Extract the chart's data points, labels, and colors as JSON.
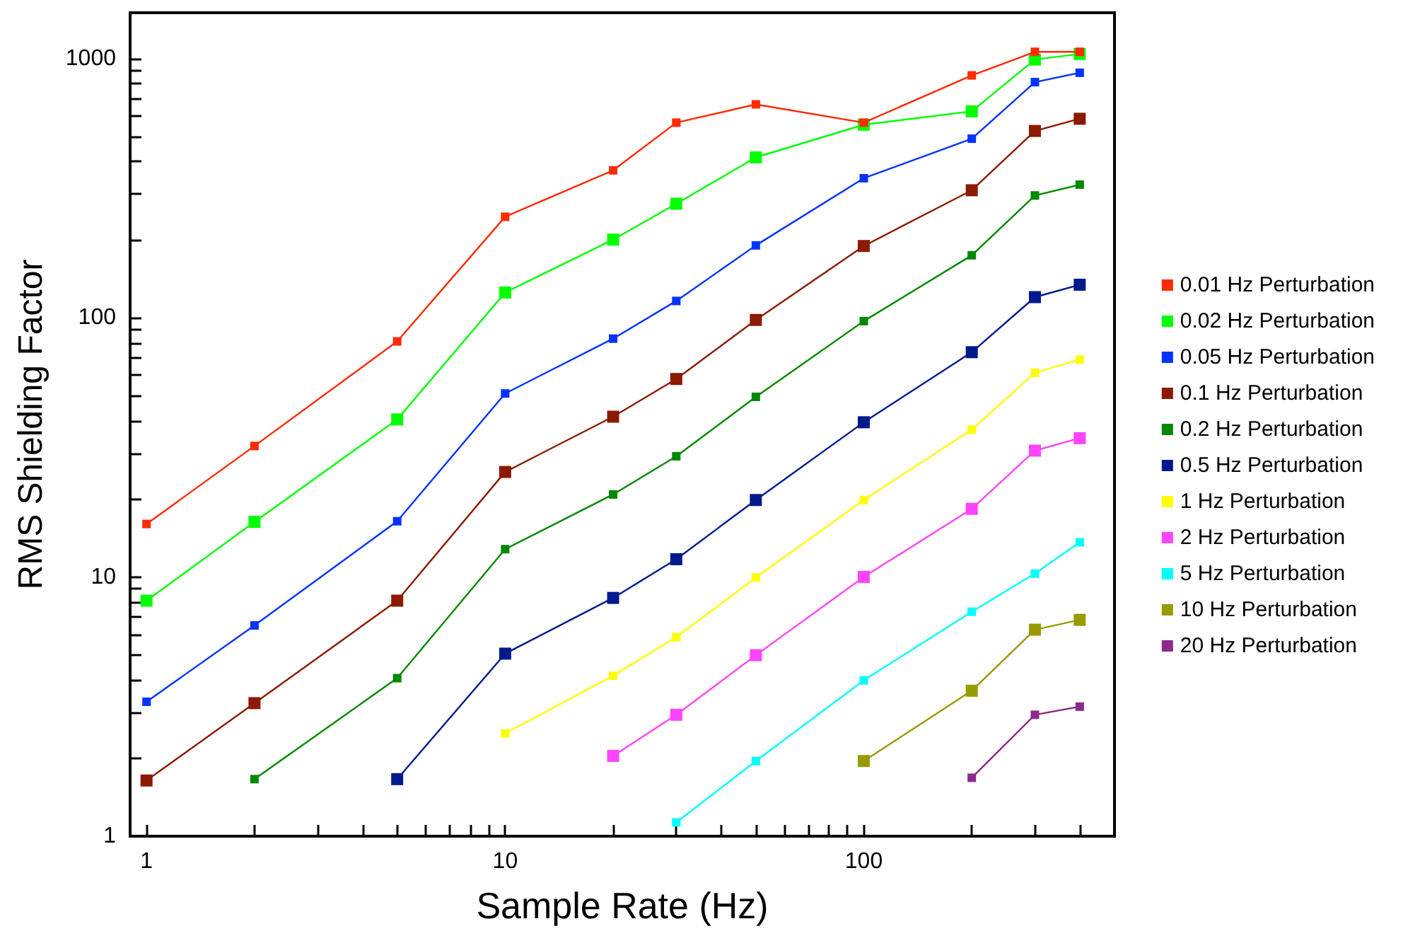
{
  "chart_data": {
    "type": "line",
    "xlabel": "Sample Rate (Hz)",
    "ylabel": "RMS Shielding Factor",
    "x": [
      1,
      2,
      5,
      10,
      20,
      30,
      50,
      100,
      200,
      300,
      400
    ],
    "series": [
      {
        "name": "0.01 Hz Perturbation",
        "color": "#ff2a00",
        "values": [
          16,
          32,
          81,
          245,
          370,
          565,
          665,
          565,
          860,
          1060,
          1060
        ]
      },
      {
        "name": "0.02 Hz Perturbation",
        "color": "#00ff00",
        "values": [
          8.1,
          16.3,
          40.5,
          125,
          200,
          275,
          415,
          555,
          625,
          990,
          1040
        ]
      },
      {
        "name": "0.05 Hz Perturbation",
        "color": "#0033ff",
        "values": [
          3.3,
          6.5,
          16.4,
          51,
          83,
          116,
          190,
          345,
          490,
          810,
          880
        ]
      },
      {
        "name": "0.1 Hz Perturbation",
        "color": "#8b1a00",
        "values": [
          1.64,
          3.26,
          8.1,
          25.4,
          41.5,
          58,
          98,
          189,
          310,
          525,
          585
        ]
      },
      {
        "name": "0.2 Hz Perturbation",
        "color": "#008800",
        "values": [
          null,
          1.66,
          4.07,
          12.8,
          20.8,
          29.2,
          49.5,
          97,
          174,
          296,
          326
        ]
      },
      {
        "name": "0.5 Hz Perturbation",
        "color": "#001a8c",
        "values": [
          null,
          null,
          1.66,
          5.06,
          8.3,
          11.7,
          19.8,
          39.5,
          73.6,
          120,
          134
        ]
      },
      {
        "name": "1 Hz Perturbation",
        "color": "#ffff00",
        "values": [
          null,
          null,
          null,
          2.49,
          4.16,
          5.86,
          9.95,
          19.8,
          37,
          61.3,
          68.9
        ]
      },
      {
        "name": "2 Hz Perturbation",
        "color": "#ff44ff",
        "values": [
          null,
          null,
          null,
          null,
          2.04,
          2.94,
          4.99,
          10,
          18.3,
          30.7,
          34.3
        ]
      },
      {
        "name": "5 Hz Perturbation",
        "color": "#00ffff",
        "values": [
          null,
          null,
          null,
          null,
          null,
          1.13,
          1.95,
          3.99,
          7.34,
          10.3,
          13.6
        ]
      },
      {
        "name": "10 Hz Perturbation",
        "color": "#999900",
        "values": [
          null,
          null,
          null,
          null,
          null,
          null,
          null,
          1.95,
          3.64,
          6.26,
          6.83
        ]
      },
      {
        "name": "20 Hz Perturbation",
        "color": "#8b2a8b",
        "values": [
          null,
          null,
          null,
          null,
          null,
          null,
          null,
          null,
          1.68,
          2.94,
          3.16
        ]
      }
    ],
    "log": "xy",
    "xlim": [
      0.9,
      500
    ],
    "ylim": [
      1,
      1500
    ],
    "xticks": [
      1,
      {
        "value": 2,
        "label": null
      },
      {
        "value": 3,
        "label": null
      },
      {
        "value": 4,
        "label": null
      },
      {
        "value": 5,
        "label": null
      },
      {
        "value": 6,
        "label": null
      },
      {
        "value": 7,
        "label": null
      },
      {
        "value": 8,
        "label": null
      },
      {
        "value": 9,
        "label": null
      },
      10,
      {
        "value": 20,
        "label": null
      },
      {
        "value": 30,
        "label": null
      },
      {
        "value": 40,
        "label": null
      },
      {
        "value": 50,
        "label": null
      },
      {
        "value": 60,
        "label": null
      },
      {
        "value": 70,
        "label": null
      },
      {
        "value": 80,
        "label": null
      },
      {
        "value": 90,
        "label": null
      },
      100,
      {
        "value": 200,
        "label": null
      },
      {
        "value": 300,
        "label": null
      },
      {
        "value": 400,
        "label": null
      }
    ],
    "yticks": [
      1,
      {
        "value": 2,
        "label": null
      },
      {
        "value": 3,
        "label": null
      },
      {
        "value": 4,
        "label": null
      },
      {
        "value": 5,
        "label": null
      },
      {
        "value": 6,
        "label": null
      },
      {
        "value": 7,
        "label": null
      },
      {
        "value": 8,
        "label": null
      },
      {
        "value": 9,
        "label": null
      },
      10,
      {
        "value": 20,
        "label": null
      },
      {
        "value": 30,
        "label": null
      },
      {
        "value": 40,
        "label": null
      },
      {
        "value": 50,
        "label": null
      },
      {
        "value": 60,
        "label": null
      },
      {
        "value": 70,
        "label": null
      },
      {
        "value": 80,
        "label": null
      },
      {
        "value": 90,
        "label": null
      },
      100,
      {
        "value": 200,
        "label": null
      },
      {
        "value": 300,
        "label": null
      },
      {
        "value": 400,
        "label": null
      },
      {
        "value": 500,
        "label": null
      },
      {
        "value": 600,
        "label": null
      },
      {
        "value": 700,
        "label": null
      },
      {
        "value": 800,
        "label": null
      },
      {
        "value": 900,
        "label": null
      },
      1000
    ],
    "grid": false,
    "legend": "right",
    "marker": "square",
    "line_style": "solid"
  }
}
